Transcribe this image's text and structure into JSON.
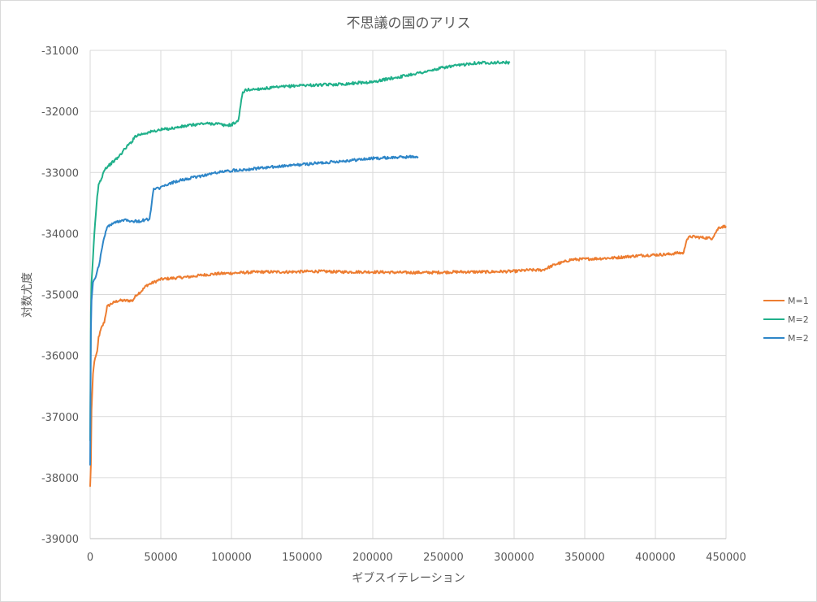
{
  "chart_data": {
    "type": "line",
    "title": "不思議の国のアリス",
    "xlabel": "ギブスイテレーション",
    "ylabel": "対数尤度",
    "xlim": [
      0,
      450000
    ],
    "ylim": [
      -39000,
      -31000
    ],
    "x_ticks": [
      "0",
      "50000",
      "100000",
      "150000",
      "200000",
      "250000",
      "300000",
      "350000",
      "400000",
      "450000"
    ],
    "y_ticks": [
      "-31000",
      "-32000",
      "-33000",
      "-34000",
      "-35000",
      "-36000",
      "-37000",
      "-38000",
      "-39000"
    ],
    "grid": true,
    "legend_position": "right",
    "series": [
      {
        "name": "M=1",
        "color": "#ED7D31",
        "x": [
          0,
          500,
          1000,
          2000,
          3000,
          4000,
          5000,
          6000,
          8000,
          10000,
          12000,
          15000,
          20000,
          25000,
          30000,
          33000,
          36000,
          40000,
          45000,
          50000,
          60000,
          70000,
          80000,
          90000,
          100000,
          120000,
          140000,
          160000,
          180000,
          200000,
          220000,
          240000,
          260000,
          280000,
          300000,
          310000,
          320000,
          325000,
          330000,
          335000,
          340000,
          350000,
          360000,
          370000,
          380000,
          390000,
          400000,
          410000,
          415000,
          420000,
          422000,
          425000,
          430000,
          440000,
          445000,
          450000
        ],
        "values": [
          -38150,
          -37800,
          -36900,
          -36300,
          -36100,
          -36000,
          -35950,
          -35700,
          -35550,
          -35450,
          -35200,
          -35150,
          -35100,
          -35100,
          -35100,
          -35000,
          -34950,
          -34850,
          -34800,
          -34750,
          -34730,
          -34710,
          -34680,
          -34660,
          -34650,
          -34630,
          -34630,
          -34620,
          -34630,
          -34630,
          -34640,
          -34640,
          -34630,
          -34630,
          -34620,
          -34600,
          -34600,
          -34550,
          -34500,
          -34470,
          -34430,
          -34420,
          -34410,
          -34400,
          -34380,
          -34360,
          -34350,
          -34340,
          -34320,
          -34320,
          -34100,
          -34050,
          -34060,
          -34080,
          -33900,
          -33880
        ]
      },
      {
        "name": "M=2",
        "color": "#20B08A",
        "x": [
          0,
          500,
          1000,
          2000,
          3000,
          4000,
          5000,
          6000,
          8000,
          10000,
          15000,
          20000,
          25000,
          30000,
          32000,
          35000,
          40000,
          50000,
          60000,
          70000,
          80000,
          90000,
          95000,
          100000,
          105000,
          106000,
          108000,
          110000,
          120000,
          130000,
          140000,
          150000,
          160000,
          170000,
          180000,
          190000,
          200000,
          210000,
          220000,
          230000,
          240000,
          250000,
          260000,
          270000,
          280000,
          290000,
          297000
        ],
        "values": [
          -37400,
          -35300,
          -34800,
          -34400,
          -34000,
          -33700,
          -33400,
          -33200,
          -33100,
          -32950,
          -32850,
          -32750,
          -32600,
          -32480,
          -32400,
          -32380,
          -32350,
          -32300,
          -32270,
          -32230,
          -32200,
          -32200,
          -32230,
          -32220,
          -32150,
          -31950,
          -31700,
          -31650,
          -31630,
          -31610,
          -31590,
          -31570,
          -31570,
          -31560,
          -31550,
          -31530,
          -31520,
          -31470,
          -31430,
          -31380,
          -31340,
          -31280,
          -31250,
          -31210,
          -31200,
          -31200,
          -31200
        ]
      },
      {
        "name": "M=2",
        "color": "#2E86C8",
        "x": [
          0,
          500,
          1000,
          2000,
          3000,
          4000,
          5000,
          6000,
          8000,
          10000,
          12000,
          15000,
          20000,
          25000,
          30000,
          35000,
          40000,
          42000,
          44000,
          45000,
          50000,
          55000,
          60000,
          70000,
          80000,
          90000,
          100000,
          110000,
          120000,
          130000,
          140000,
          150000,
          160000,
          170000,
          180000,
          190000,
          200000,
          210000,
          220000,
          232000
        ],
        "values": [
          -37800,
          -35600,
          -35100,
          -34800,
          -34750,
          -34700,
          -34600,
          -34550,
          -34300,
          -34050,
          -33900,
          -33850,
          -33800,
          -33770,
          -33800,
          -33800,
          -33770,
          -33780,
          -33420,
          -33280,
          -33250,
          -33200,
          -33150,
          -33100,
          -33050,
          -33000,
          -32970,
          -32950,
          -32930,
          -32910,
          -32890,
          -32870,
          -32850,
          -32830,
          -32810,
          -32790,
          -32770,
          -32760,
          -32750,
          -32740
        ]
      }
    ]
  }
}
